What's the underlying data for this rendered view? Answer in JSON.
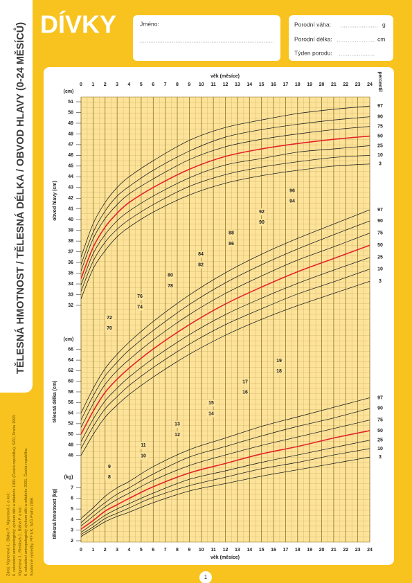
{
  "header": {
    "title": "DÍVKY",
    "vertical_title": "TĚLESNÁ HMOTNOST / TĚLESNÁ DÉLKA / OBVOD HLAVY (0-24 MĚSÍCŮ)",
    "source": [
      "Zdroj: Vignerová J., Bláha P., Vignerová J. a kol.:",
      "6. celostátní antropologický výzkum dětí a mládeže 1991 (Česká republika), SZÚ, Praha 1993.",
      "Vignerová J., Riedlová J., Bláha P. a kol.:",
      "6. celostátní antropologický výzkum dětí a mládeže 2001. Česká republika.",
      "Souhrnné výsledky, PřF UK, SZÚ Praha 2006."
    ],
    "page_number": "1"
  },
  "form": {
    "name_label": "Jméno:",
    "birth_weight_label": "Porodní váha:",
    "birth_weight_unit": "g",
    "birth_length_label": "Porodní délka:",
    "birth_length_unit": "cm",
    "birth_week_label": "Týden porodu:"
  },
  "chart_data": [
    {
      "type": "line",
      "y_label": "obvod hlavy (cm)",
      "y_unit": "(cm)",
      "x_label": "věk (měsíce)",
      "legend_title": "percentil",
      "x": [
        0,
        1,
        2,
        3,
        4,
        6,
        9,
        12,
        15,
        18,
        21,
        24
      ],
      "xlim": [
        0,
        24
      ],
      "xticks": [
        0,
        1,
        2,
        3,
        4,
        5,
        6,
        7,
        8,
        9,
        10,
        11,
        12,
        13,
        14,
        15,
        16,
        17,
        18,
        19,
        20,
        21,
        22,
        23,
        24
      ],
      "ylim": [
        32,
        51
      ],
      "yticks": [
        32,
        33,
        34,
        35,
        36,
        37,
        38,
        39,
        40,
        41,
        42,
        43,
        44,
        45,
        46,
        47,
        48,
        49,
        50,
        51
      ],
      "series": [
        {
          "name": "97",
          "color": "#222222",
          "values": [
            36.5,
            39.6,
            41.6,
            43.0,
            44.0,
            45.5,
            47.4,
            48.6,
            49.3,
            49.9,
            50.3,
            50.6
          ]
        },
        {
          "name": "90",
          "color": "#222222",
          "values": [
            35.8,
            38.8,
            40.8,
            42.2,
            43.1,
            44.6,
            46.4,
            47.7,
            48.4,
            48.9,
            49.3,
            49.6
          ]
        },
        {
          "name": "75",
          "color": "#222222",
          "values": [
            35.2,
            38.2,
            40.1,
            41.4,
            42.4,
            43.8,
            45.6,
            46.8,
            47.5,
            48.0,
            48.4,
            48.7
          ]
        },
        {
          "name": "50",
          "color": "#e2232a",
          "values": [
            34.5,
            37.4,
            39.3,
            40.6,
            41.6,
            43.0,
            44.7,
            45.9,
            46.6,
            47.1,
            47.5,
            47.8
          ]
        },
        {
          "name": "25",
          "color": "#222222",
          "values": [
            33.9,
            36.8,
            38.6,
            39.9,
            40.8,
            42.2,
            43.9,
            45.1,
            45.7,
            46.3,
            46.6,
            46.9
          ]
        },
        {
          "name": "10",
          "color": "#222222",
          "values": [
            33.3,
            36.1,
            37.9,
            39.1,
            40.0,
            41.4,
            43.1,
            44.2,
            44.9,
            45.4,
            45.8,
            46.0
          ]
        },
        {
          "name": "3",
          "color": "#222222",
          "values": [
            32.6,
            35.4,
            37.1,
            38.4,
            39.3,
            40.7,
            42.3,
            43.4,
            44.1,
            44.6,
            45.0,
            45.2
          ]
        }
      ]
    },
    {
      "type": "line",
      "y_label": "tělesná délka (cm)",
      "y_unit": "(cm)",
      "x": [
        0,
        1,
        2,
        3,
        4,
        6,
        9,
        12,
        15,
        18,
        21,
        24
      ],
      "xlim": [
        0,
        24
      ],
      "ylim": [
        44,
        96
      ],
      "yticks": [
        46,
        48,
        50,
        52,
        54,
        56,
        58,
        60,
        62,
        64,
        66,
        70,
        72,
        74,
        76,
        78,
        80,
        82,
        84,
        86,
        88,
        90,
        92,
        94,
        96
      ],
      "series": [
        {
          "name": "97",
          "color": "#222222",
          "values": [
            54.0,
            58.6,
            62.4,
            65.1,
            67.4,
            71.3,
            76.3,
            80.5,
            84.0,
            87.0,
            89.7,
            92.4
          ]
        },
        {
          "name": "90",
          "color": "#222222",
          "values": [
            52.7,
            57.2,
            61.0,
            63.6,
            65.9,
            69.6,
            74.5,
            78.6,
            82.0,
            85.0,
            87.7,
            90.3
          ]
        },
        {
          "name": "75",
          "color": "#222222",
          "values": [
            51.3,
            55.7,
            59.4,
            62.0,
            64.1,
            67.8,
            72.6,
            76.6,
            79.9,
            82.9,
            85.4,
            88.0
          ]
        },
        {
          "name": "50",
          "color": "#e2232a",
          "values": [
            50.0,
            54.3,
            57.9,
            60.4,
            62.5,
            66.1,
            70.7,
            74.6,
            77.8,
            80.7,
            83.2,
            85.7
          ]
        },
        {
          "name": "25",
          "color": "#222222",
          "values": [
            48.6,
            52.8,
            56.3,
            58.7,
            60.8,
            64.3,
            68.8,
            72.6,
            75.7,
            78.5,
            81.0,
            83.4
          ]
        },
        {
          "name": "10",
          "color": "#222222",
          "values": [
            47.3,
            51.4,
            54.8,
            57.1,
            59.2,
            62.6,
            67.0,
            70.7,
            73.7,
            76.5,
            78.8,
            81.2
          ]
        },
        {
          "name": "3",
          "color": "#222222",
          "values": [
            46.0,
            49.9,
            53.2,
            55.5,
            57.5,
            60.8,
            65.1,
            68.7,
            71.7,
            74.3,
            76.6,
            78.9
          ]
        }
      ]
    },
    {
      "type": "line",
      "y_label": "tělesná hmotnost (kg)",
      "y_unit": "(kg)",
      "x": [
        0,
        1,
        2,
        3,
        4,
        6,
        9,
        12,
        15,
        18,
        21,
        24
      ],
      "xlim": [
        0,
        24
      ],
      "ylim": [
        2,
        19
      ],
      "yticks": [
        2,
        3,
        4,
        5,
        6,
        7,
        8,
        9,
        10,
        11,
        12,
        13,
        14,
        15,
        16,
        17,
        18,
        19
      ],
      "series": [
        {
          "name": "97",
          "color": "#222222",
          "values": [
            4.1,
            5.1,
            6.2,
            7.0,
            7.6,
            9.0,
            10.6,
            11.7,
            12.8,
            13.7,
            14.6,
            15.5
          ]
        },
        {
          "name": "90",
          "color": "#222222",
          "values": [
            3.7,
            4.7,
            5.6,
            6.4,
            7.0,
            8.3,
            9.9,
            10.9,
            11.9,
            12.8,
            13.6,
            14.5
          ]
        },
        {
          "name": "75",
          "color": "#222222",
          "values": [
            3.4,
            4.3,
            5.2,
            5.9,
            6.5,
            7.7,
            9.1,
            10.1,
            11.0,
            11.8,
            12.6,
            13.4
          ]
        },
        {
          "name": "50",
          "color": "#e2232a",
          "values": [
            3.1,
            3.9,
            4.8,
            5.4,
            6.0,
            7.1,
            8.4,
            9.3,
            10.2,
            10.9,
            11.7,
            12.4
          ]
        },
        {
          "name": "25",
          "color": "#222222",
          "values": [
            2.8,
            3.6,
            4.4,
            5.0,
            5.5,
            6.5,
            7.8,
            8.6,
            9.4,
            10.1,
            10.8,
            11.5
          ]
        },
        {
          "name": "10",
          "color": "#222222",
          "values": [
            2.6,
            3.3,
            4.1,
            4.6,
            5.1,
            6.1,
            7.2,
            8.0,
            8.8,
            9.4,
            10.1,
            10.7
          ]
        },
        {
          "name": "3",
          "color": "#222222",
          "values": [
            2.4,
            3.1,
            3.8,
            4.3,
            4.7,
            5.6,
            6.7,
            7.4,
            8.1,
            8.7,
            9.3,
            9.9
          ]
        }
      ]
    }
  ]
}
